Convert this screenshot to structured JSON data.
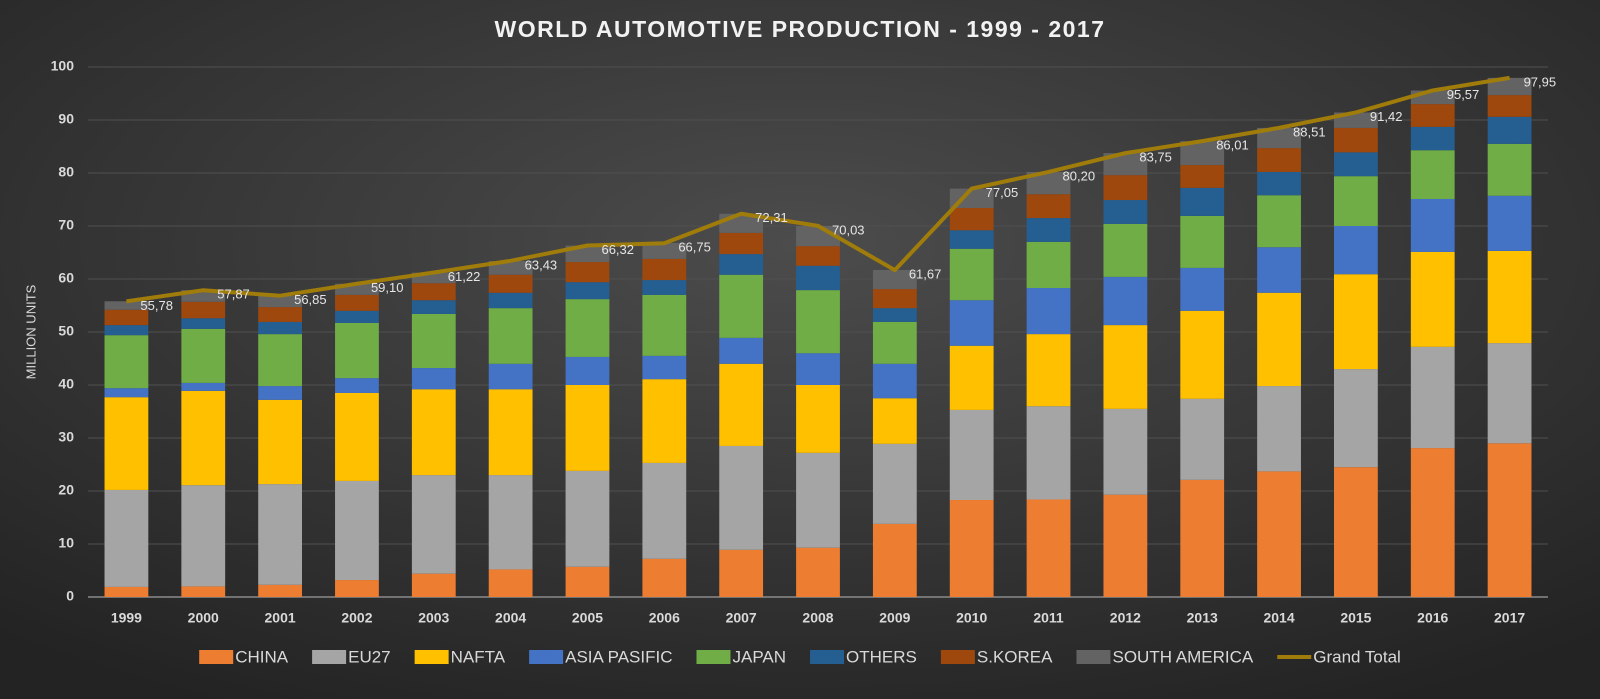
{
  "chart_data": {
    "type": "bar",
    "title": "WORLD AUTOMOTIVE PRODUCTION - 1999 - 2017",
    "y_label": "MILLION UNITS",
    "categories": [
      "1999",
      "2000",
      "2001",
      "2002",
      "2003",
      "2004",
      "2005",
      "2006",
      "2007",
      "2008",
      "2009",
      "2010",
      "2011",
      "2012",
      "2013",
      "2014",
      "2015",
      "2016",
      "2017"
    ],
    "ylim": [
      0,
      100
    ],
    "yticks": [
      0,
      10,
      20,
      30,
      40,
      50,
      60,
      70,
      80,
      90,
      100
    ],
    "grid": true,
    "stacked": true,
    "legend": "bottom",
    "series": [
      {
        "name": "CHINA",
        "color": "#ed7d31",
        "values": [
          1.9,
          2.0,
          2.3,
          3.2,
          4.4,
          5.2,
          5.7,
          7.2,
          8.9,
          9.3,
          13.8,
          18.3,
          18.4,
          19.3,
          22.1,
          23.7,
          24.5,
          28.1,
          29.0
        ]
      },
      {
        "name": "EU27",
        "color": "#a5a5a5",
        "values": [
          18.3,
          19.1,
          19.0,
          18.7,
          18.6,
          17.8,
          18.1,
          18.1,
          19.6,
          17.9,
          15.1,
          17.0,
          17.6,
          16.2,
          15.3,
          16.1,
          18.5,
          19.1,
          18.9
        ]
      },
      {
        "name": "NAFTA",
        "color": "#ffc000",
        "values": [
          17.5,
          17.8,
          15.9,
          16.6,
          16.2,
          16.2,
          16.2,
          15.8,
          15.5,
          12.8,
          8.6,
          12.1,
          13.6,
          15.8,
          16.6,
          17.6,
          17.9,
          17.9,
          17.4
        ]
      },
      {
        "name": "ASIA PASIFIC",
        "color": "#4472c4",
        "values": [
          1.7,
          1.5,
          2.6,
          2.8,
          4.0,
          4.8,
          5.3,
          4.4,
          4.9,
          6.0,
          6.5,
          8.6,
          8.7,
          9.1,
          8.1,
          8.6,
          9.1,
          10.0,
          10.4
        ]
      },
      {
        "name": "JAPAN",
        "color": "#70ad47",
        "values": [
          10.0,
          10.2,
          9.8,
          10.4,
          10.2,
          10.5,
          10.9,
          11.5,
          11.9,
          11.9,
          7.9,
          9.7,
          8.7,
          10.0,
          9.8,
          9.8,
          9.4,
          9.2,
          9.8
        ]
      },
      {
        "name": "OTHERS",
        "color": "#255e91",
        "values": [
          1.9,
          2.0,
          2.3,
          2.3,
          2.6,
          2.9,
          3.2,
          2.8,
          3.9,
          4.6,
          2.6,
          3.5,
          4.5,
          4.5,
          5.3,
          4.4,
          4.5,
          4.4,
          5.1
        ]
      },
      {
        "name": "S.KOREA",
        "color": "#9e480e",
        "values": [
          2.9,
          3.1,
          2.8,
          3.0,
          3.2,
          3.4,
          3.8,
          4.0,
          4.0,
          3.7,
          3.6,
          4.2,
          4.5,
          4.7,
          4.3,
          4.5,
          4.6,
          4.3,
          4.1
        ]
      },
      {
        "name": "SOUTH AMERICA",
        "color": "#636363",
        "values": [
          1.6,
          2.2,
          2.1,
          2.1,
          2.0,
          2.6,
          3.1,
          3.0,
          3.6,
          3.8,
          3.6,
          3.65,
          4.2,
          4.15,
          4.51,
          3.81,
          2.92,
          2.57,
          3.25
        ]
      },
      {
        "name": "Grand Total",
        "type": "line",
        "color": "#a07c0a",
        "values": [
          55.78,
          57.87,
          56.85,
          59.1,
          61.22,
          63.43,
          66.32,
          66.75,
          72.31,
          70.03,
          61.67,
          77.05,
          80.2,
          83.75,
          86.01,
          88.51,
          91.42,
          95.57,
          97.95
        ],
        "value_labels": [
          "55,78",
          "57,87",
          "56,85",
          "59,10",
          "61,22",
          "63,43",
          "66,32",
          "66,75",
          "72,31",
          "70,03",
          "61,67",
          "77,05",
          "80,20",
          "83,75",
          "86,01",
          "88,51",
          "91,42",
          "95,57",
          "97,95"
        ]
      }
    ]
  }
}
